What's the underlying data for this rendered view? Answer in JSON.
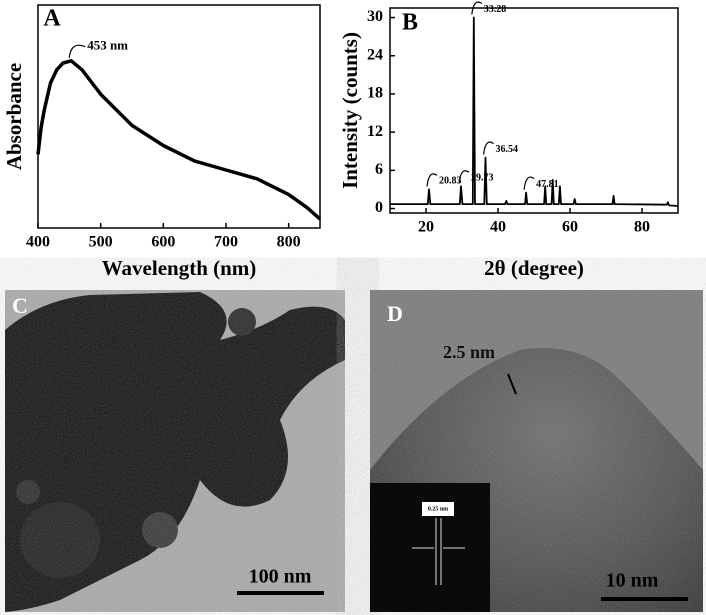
{
  "chart_data": [
    {
      "type": "line",
      "panel": "A",
      "xlabel": "Wavelength (nm)",
      "ylabel": "Absorbance",
      "x": [
        400,
        405,
        410,
        420,
        430,
        440,
        453,
        470,
        500,
        550,
        600,
        650,
        700,
        750,
        800,
        830,
        850
      ],
      "values": [
        0.33,
        0.45,
        0.53,
        0.65,
        0.71,
        0.74,
        0.75,
        0.71,
        0.6,
        0.46,
        0.37,
        0.3,
        0.26,
        0.22,
        0.15,
        0.09,
        0.04
      ],
      "color": "#000000",
      "xlim": [
        400,
        850
      ],
      "xticks": [
        400,
        500,
        600,
        700,
        800
      ],
      "ylim": [
        0,
        1
      ],
      "annotations": [
        {
          "x": 453,
          "y": 0.75,
          "label": "453 nm"
        }
      ]
    },
    {
      "type": "line",
      "panel": "B",
      "xlabel": "2θ (degree)",
      "ylabel": "Intensity (counts)",
      "x": [
        10,
        20.5,
        20.83,
        21.2,
        29.4,
        29.73,
        30.1,
        33,
        33.28,
        33.6,
        36.2,
        36.54,
        36.9,
        42,
        42.3,
        42.6,
        47.5,
        47.81,
        48.1,
        52.8,
        53.1,
        53.4,
        54.9,
        55.2,
        55.5,
        56.9,
        57.2,
        57.5,
        61,
        61.3,
        61.6,
        71.8,
        72.1,
        72.4,
        86.9,
        87.2,
        87.5,
        90
      ],
      "values": [
        0.7,
        0.7,
        3,
        0.7,
        0.7,
        3.5,
        0.7,
        0.7,
        30,
        0.7,
        0.7,
        8,
        0.7,
        0.7,
        1.2,
        0.7,
        0.7,
        2.5,
        0.7,
        0.7,
        3.5,
        0.7,
        0.7,
        4.5,
        0.7,
        0.7,
        3.5,
        0.7,
        0.7,
        1.5,
        0.7,
        0.7,
        2,
        0.7,
        0.6,
        1,
        0.5,
        0.4
      ],
      "color": "#000000",
      "xlim": [
        10,
        90
      ],
      "xticks": [
        20,
        40,
        60,
        80
      ],
      "ylim": [
        -0.7,
        31.5
      ],
      "yticks": [
        0,
        6,
        12,
        18,
        24,
        30
      ],
      "annotations": [
        {
          "x": 20.83,
          "y": 3,
          "label": "20.83"
        },
        {
          "x": 29.73,
          "y": 3.5,
          "label": "29.73"
        },
        {
          "x": 33.28,
          "y": 30,
          "label": "33.28"
        },
        {
          "x": 36.54,
          "y": 8,
          "label": "36.54"
        },
        {
          "x": 47.81,
          "y": 2.5,
          "label": "47.81"
        }
      ]
    }
  ],
  "images": [
    {
      "panel": "C",
      "scale_bar": "100 nm"
    },
    {
      "panel": "D",
      "annotation": "2.5 nm",
      "inset_label": "0.25 nm",
      "scale_bar": "10 nm"
    }
  ]
}
